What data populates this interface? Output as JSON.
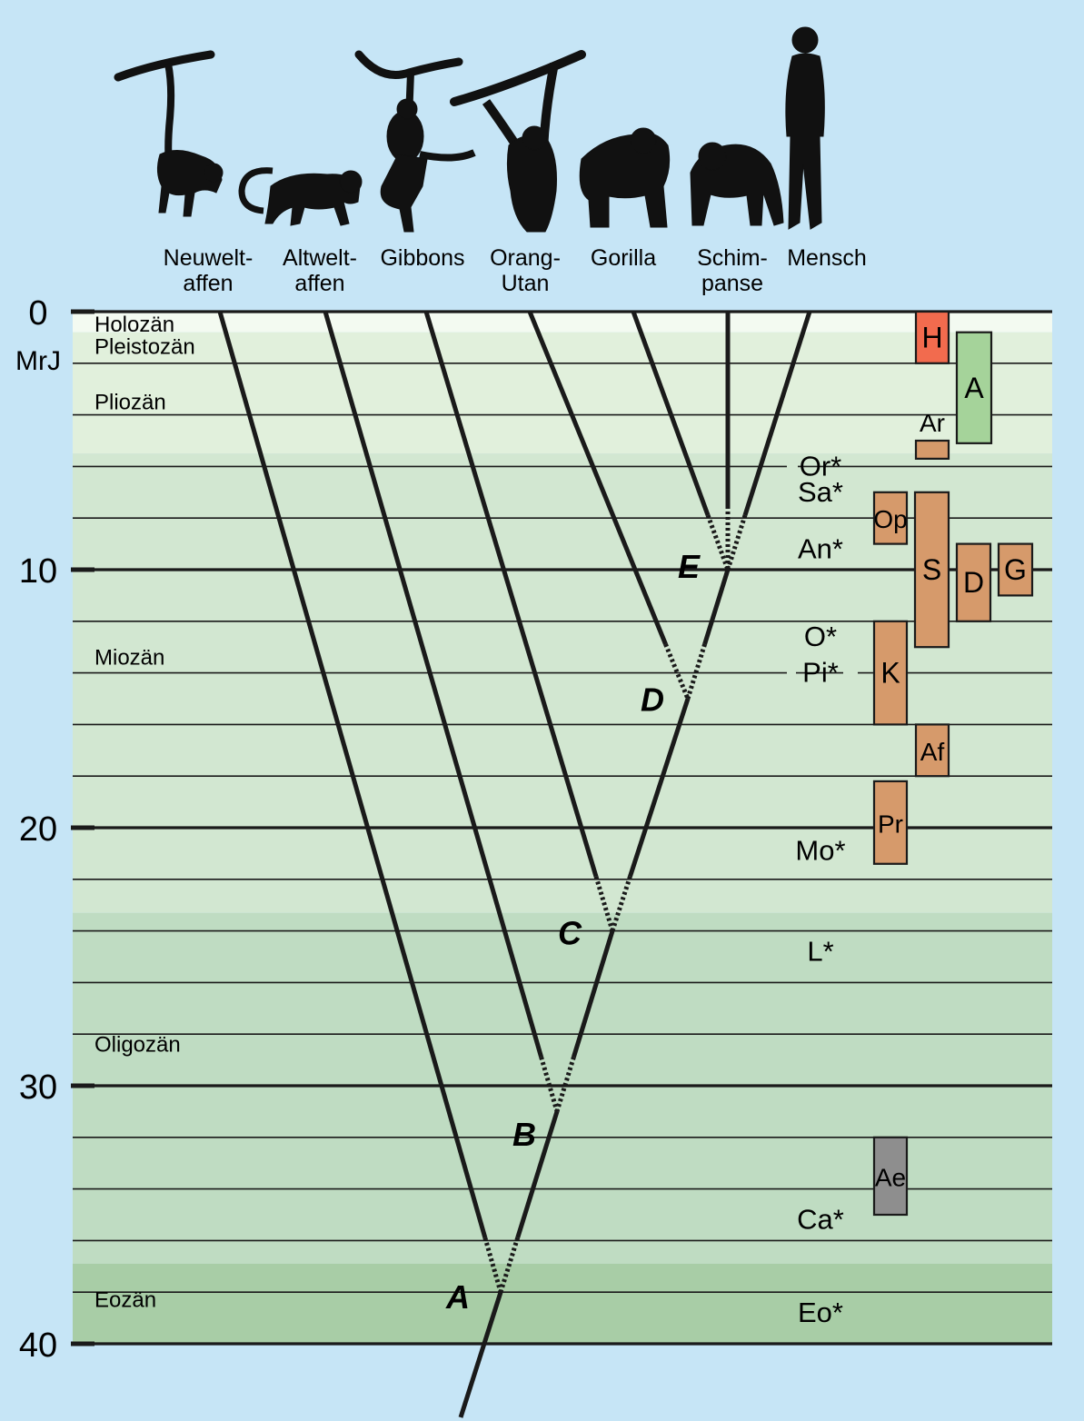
{
  "species": [
    {
      "id": "neuwelt",
      "lines": [
        "Neuwelt-",
        "affen"
      ]
    },
    {
      "id": "altwelt",
      "lines": [
        "Altwelt-",
        "affen"
      ]
    },
    {
      "id": "gibbons",
      "lines": [
        "Gibbons"
      ]
    },
    {
      "id": "orang",
      "lines": [
        "Orang-",
        "Utan"
      ]
    },
    {
      "id": "gorilla",
      "lines": [
        "Gorilla"
      ]
    },
    {
      "id": "schimpanse",
      "lines": [
        "Schim-",
        "panse"
      ]
    },
    {
      "id": "mensch",
      "lines": [
        "Mensch"
      ]
    }
  ],
  "axis": {
    "unit": "MrJ",
    "ticks": [
      0,
      10,
      20,
      30,
      40
    ],
    "range": [
      0,
      40
    ],
    "minor_step": 2
  },
  "epochs": [
    {
      "name": "Holozän",
      "from": 0,
      "to": 0.8,
      "color": "#f3faf1"
    },
    {
      "name": "Pleistozän",
      "from": 0.8,
      "to": 5.5,
      "color": "#e1f0dc"
    },
    {
      "name": "Pliozän",
      "from": 0.8,
      "to": 5.5,
      "color": "#e1f0dc"
    },
    {
      "name": "Miozän",
      "from": 5.5,
      "to": 23.3,
      "color": "#d2e7d1"
    },
    {
      "name": "Oligozän",
      "from": 23.3,
      "to": 36.9,
      "color": "#bfdcc2"
    },
    {
      "name": "Eozän",
      "from": 36.9,
      "to": 40,
      "color": "#a8cda6"
    }
  ],
  "divergences": [
    {
      "label": "A",
      "mya": 38
    },
    {
      "label": "B",
      "mya": 31
    },
    {
      "label": "C",
      "mya": 24
    },
    {
      "label": "D",
      "mya": 15
    },
    {
      "label": "E",
      "mya": 10
    }
  ],
  "fossil_markers": [
    {
      "label": "Or*",
      "mya": 6
    },
    {
      "label": "Sa*",
      "mya": 7
    },
    {
      "label": "An*",
      "mya": 9.2
    },
    {
      "label": "O*",
      "mya": 12.6
    },
    {
      "label": "Pi*",
      "mya": 14
    },
    {
      "label": "Mo*",
      "mya": 20.9
    },
    {
      "label": "L*",
      "mya": 24.8
    },
    {
      "label": "Ca*",
      "mya": 35.2
    },
    {
      "label": "Eo*",
      "mya": 38.8
    }
  ],
  "genus_boxes": [
    {
      "label": "H",
      "from": 0,
      "to": 2,
      "color": "#f26b4e"
    },
    {
      "label": "A",
      "from": 0.8,
      "to": 5.1,
      "color": "#a5d39a"
    },
    {
      "label": "Ar",
      "from": 5,
      "to": 5.7,
      "color": "#d69a6b"
    },
    {
      "label": "Op",
      "from": 7,
      "to": 9,
      "color": "#d69a6b"
    },
    {
      "label": "S",
      "from": 7,
      "to": 13,
      "color": "#d69a6b"
    },
    {
      "label": "D",
      "from": 9,
      "to": 12,
      "color": "#d69a6b"
    },
    {
      "label": "G",
      "from": 9,
      "to": 11,
      "color": "#d69a6b"
    },
    {
      "label": "K",
      "from": 12,
      "to": 16,
      "color": "#d69a6b"
    },
    {
      "label": "Af",
      "from": 16,
      "to": 18,
      "color": "#d69a6b"
    },
    {
      "label": "Pr",
      "from": 18.2,
      "to": 21.4,
      "color": "#d69a6b"
    },
    {
      "label": "Ae",
      "from": 32,
      "to": 35,
      "color": "#8e8e8e"
    }
  ],
  "colors": {
    "background": "#c6e5f6",
    "lines": "#1a1a1a",
    "silhouettes": "#111111"
  }
}
